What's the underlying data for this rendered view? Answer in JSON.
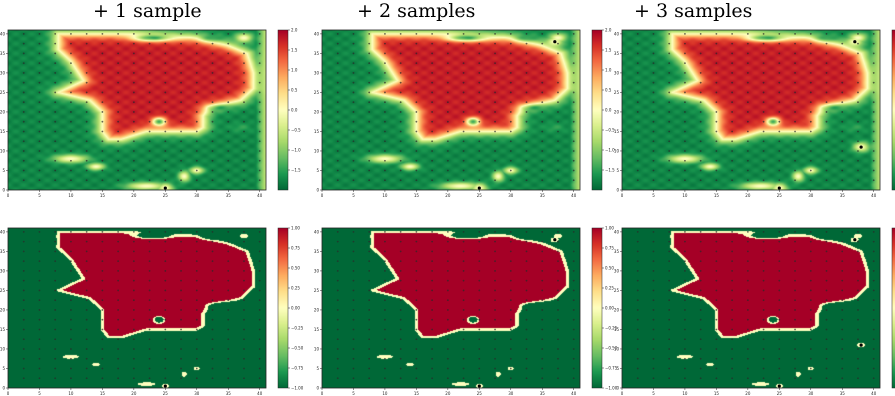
{
  "titles": [
    "+ 1 sample",
    "+ 2 samples",
    "+ 3 samples"
  ],
  "chart_data": {
    "type": "heatmap",
    "columns": [
      {
        "title": "+ 1 sample",
        "extra_samples": [
          [
            25,
            0.5
          ]
        ]
      },
      {
        "title": "+ 2 samples",
        "extra_samples": [
          [
            25,
            0.5
          ],
          [
            37,
            38
          ]
        ]
      },
      {
        "title": "+ 3 samples",
        "extra_samples": [
          [
            25,
            0.5
          ],
          [
            37,
            38
          ],
          [
            38,
            11
          ]
        ]
      }
    ],
    "rows": [
      {
        "kind": "smooth",
        "colorbar": {
          "vmin": -2.0,
          "vmax": 2.0,
          "ticks": [
            -1.5,
            -1.0,
            -0.5,
            0.0,
            0.5,
            1.0,
            1.5,
            2.0
          ],
          "tick_labels": [
            "−1.5",
            "−1.0",
            "−0.5",
            "0.0",
            "0.5",
            "1.0",
            "1.5",
            "2.0"
          ]
        }
      },
      {
        "kind": "thresholded",
        "colorbar": {
          "vmin": -1.0,
          "vmax": 1.0,
          "ticks": [
            -1.0,
            -0.75,
            -0.5,
            -0.25,
            0.0,
            0.25,
            0.5,
            0.75,
            1.0
          ],
          "tick_labels": [
            "−1.00",
            "−0.75",
            "−0.50",
            "−0.25",
            "0.00",
            "0.25",
            "0.50",
            "0.75",
            "1.00"
          ]
        }
      }
    ],
    "xlim": [
      0,
      41
    ],
    "ylim": [
      0,
      41
    ],
    "x_ticks": [
      0,
      5,
      10,
      15,
      20,
      25,
      30,
      35,
      40
    ],
    "y_ticks": [
      0,
      5,
      10,
      15,
      20,
      25,
      30,
      35,
      40
    ],
    "colormap": "RdYlGn_r",
    "grid_markers": {
      "start": 2.5,
      "step": 2.5
    },
    "red_region": [
      [
        8,
        40
      ],
      [
        20,
        40
      ],
      [
        30,
        39
      ],
      [
        35,
        37
      ],
      [
        38,
        35
      ],
      [
        39,
        30
      ],
      [
        39,
        26
      ],
      [
        37,
        23
      ],
      [
        32,
        21
      ],
      [
        31,
        19
      ],
      [
        31,
        16
      ],
      [
        30,
        15
      ],
      [
        22,
        15
      ],
      [
        18,
        13
      ],
      [
        16,
        13
      ],
      [
        15,
        15
      ],
      [
        15,
        20
      ],
      [
        13,
        23
      ],
      [
        8,
        25
      ],
      [
        12,
        28
      ],
      [
        10,
        33
      ],
      [
        8,
        36
      ]
    ],
    "green_blobs": [
      [
        24,
        17.5,
        1.2,
        1.2
      ],
      [
        34,
        21,
        2.3,
        1.0
      ],
      [
        37,
        16,
        2.0,
        1.3
      ],
      [
        23,
        39,
        3.5,
        1.0
      ],
      [
        32.5,
        39,
        2.0,
        1.0
      ]
    ],
    "yellow_blobs": [
      [
        10,
        8,
        3.0,
        1.2
      ],
      [
        14,
        6,
        1.5,
        1.0
      ],
      [
        22,
        1,
        3.5,
        1.1
      ],
      [
        28,
        3.5,
        1.0,
        1.5
      ],
      [
        30,
        5,
        1.2,
        1.0
      ],
      [
        37.5,
        39,
        1.5,
        1.3
      ]
    ]
  }
}
